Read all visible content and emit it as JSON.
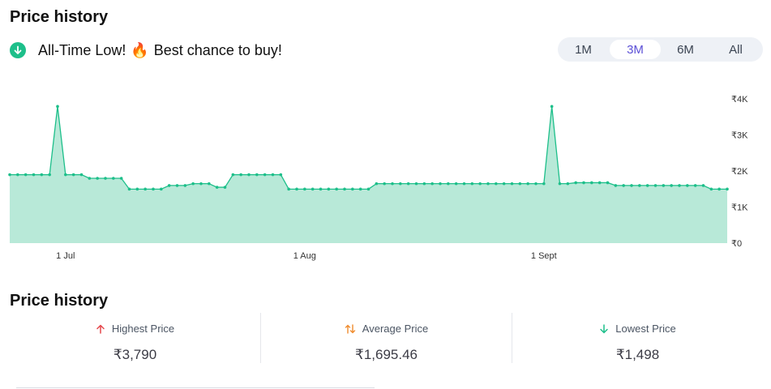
{
  "header": {
    "title": "Price history"
  },
  "alert": {
    "text": "All-Time Low!",
    "emoji": "🔥",
    "text2": "Best chance to buy!"
  },
  "range": {
    "options": [
      "1M",
      "3M",
      "6M",
      "All"
    ],
    "selected": "3M"
  },
  "colors": {
    "line": "#1dbf8a",
    "fill": "#b8e9d8",
    "up": "#e5484d",
    "avg": "#f08c2e",
    "down": "#1dbf8a",
    "accent": "#5b4fd6"
  },
  "chart_data": {
    "type": "area",
    "x_tick_labels": [
      "1 Jul",
      "1 Aug",
      "1 Sept"
    ],
    "y_tick_labels": [
      "₹4K",
      "₹3K",
      "₹2K",
      "₹1K",
      "₹0"
    ],
    "y_ticks": [
      4000,
      3000,
      2000,
      1000,
      0
    ],
    "ylim": [
      0,
      4000
    ],
    "values": [
      1898,
      1898,
      1898,
      1898,
      1898,
      1898,
      3790,
      1898,
      1898,
      1898,
      1798,
      1798,
      1798,
      1798,
      1798,
      1498,
      1498,
      1498,
      1498,
      1498,
      1598,
      1598,
      1598,
      1649,
      1649,
      1649,
      1549,
      1549,
      1898,
      1898,
      1898,
      1898,
      1898,
      1898,
      1898,
      1498,
      1498,
      1498,
      1498,
      1498,
      1498,
      1498,
      1498,
      1498,
      1498,
      1498,
      1649,
      1649,
      1649,
      1649,
      1649,
      1649,
      1649,
      1649,
      1649,
      1649,
      1649,
      1649,
      1649,
      1649,
      1649,
      1649,
      1649,
      1649,
      1649,
      1649,
      1649,
      1649,
      3790,
      1649,
      1649,
      1675,
      1675,
      1675,
      1675,
      1675,
      1598,
      1598,
      1598,
      1598,
      1598,
      1598,
      1598,
      1598,
      1598,
      1598,
      1598,
      1598,
      1498,
      1498,
      1498
    ]
  },
  "stats": {
    "title": "Price history",
    "items": [
      {
        "label": "Highest Price",
        "value": "₹3,790",
        "icon": "arrow-up-icon"
      },
      {
        "label": "Average Price",
        "value": "₹1,695.46",
        "icon": "up-down-arrows-icon"
      },
      {
        "label": "Lowest Price",
        "value": "₹1,498",
        "icon": "arrow-down-icon"
      }
    ]
  }
}
